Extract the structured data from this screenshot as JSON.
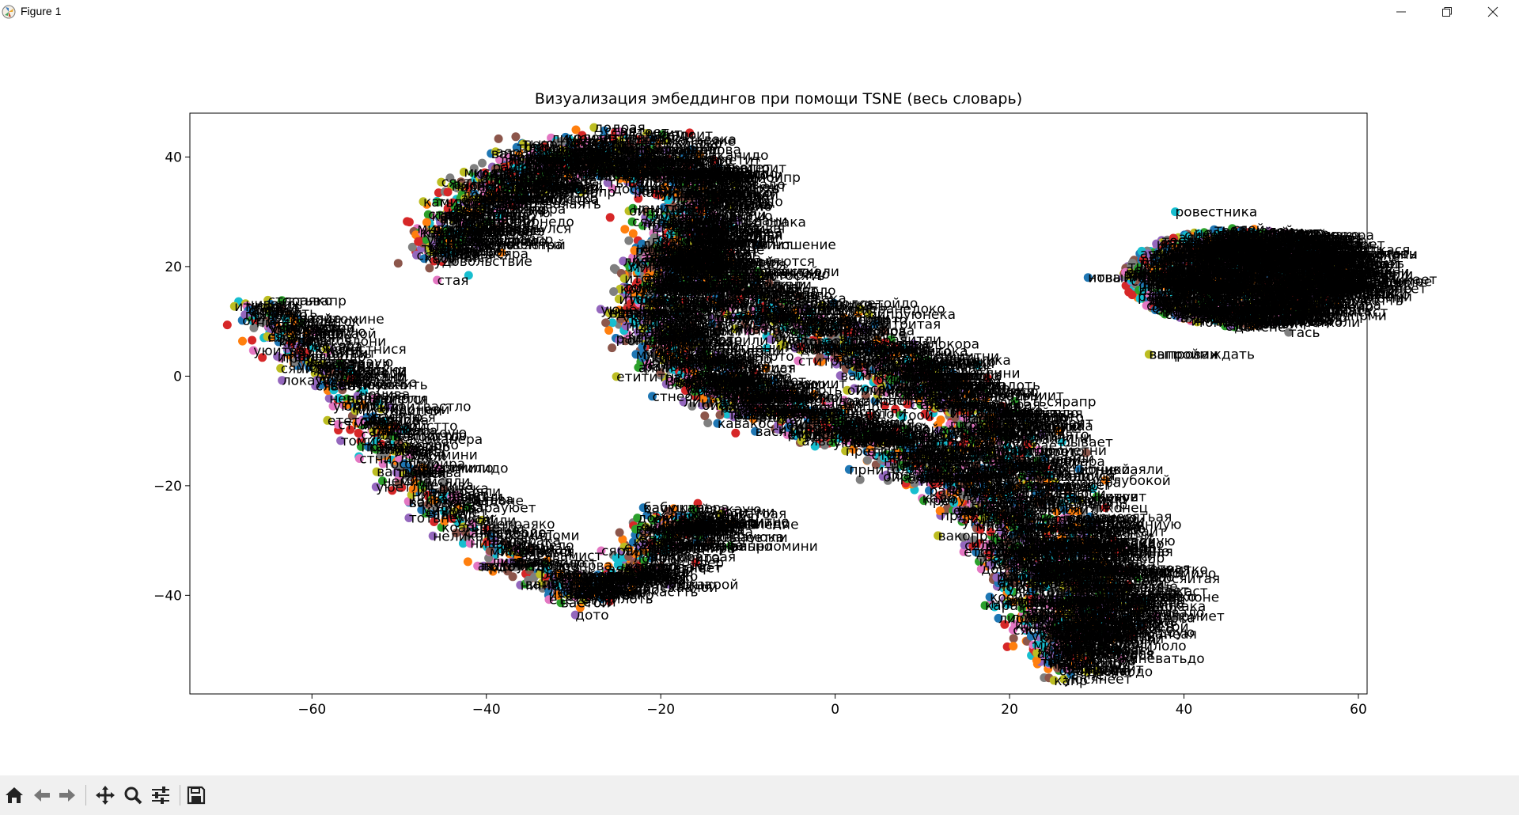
{
  "window": {
    "title": "Figure 1"
  },
  "toolbar": {
    "buttons": [
      {
        "name": "home",
        "icon": "home-icon"
      },
      {
        "name": "back",
        "icon": "back-arrow-icon"
      },
      {
        "name": "forward",
        "icon": "forward-arrow-icon"
      },
      {
        "name": "pan",
        "icon": "pan-icon"
      },
      {
        "name": "zoom",
        "icon": "zoom-icon"
      },
      {
        "name": "configure-subplots",
        "icon": "sliders-icon"
      },
      {
        "name": "save",
        "icon": "save-icon"
      }
    ]
  },
  "chart_data": {
    "type": "scatter",
    "title": "Визуализация эмбеддингов при помощи TSNE (весь словарь)",
    "xlabel": "",
    "ylabel": "",
    "xlim": [
      -74,
      61
    ],
    "ylim": [
      -58,
      48
    ],
    "xticks": [
      -60,
      -40,
      -20,
      0,
      20,
      40,
      60
    ],
    "yticks": [
      -40,
      -20,
      0,
      20,
      40
    ],
    "xtick_labels": [
      "−60",
      "−40",
      "−20",
      "0",
      "20",
      "40",
      "60"
    ],
    "ytick_labels": [
      "−40",
      "−20",
      "0",
      "20",
      "40"
    ],
    "grid": false,
    "colors": [
      "#1f77b4",
      "#ff7f0e",
      "#2ca02c",
      "#d62728",
      "#9467bd",
      "#8c564b",
      "#e377c2",
      "#7f7f7f",
      "#bcbd22",
      "#17becf"
    ],
    "clusters": [
      {
        "shape": "polyline",
        "points": [
          [
            -67,
            12
          ],
          [
            -62,
            6
          ],
          [
            -57,
            -2
          ],
          [
            -52,
            -12
          ],
          [
            -47,
            -22
          ],
          [
            -41,
            -31
          ],
          [
            -35,
            -36
          ],
          [
            -30,
            -39
          ],
          [
            -25,
            -37
          ],
          [
            -22,
            -31
          ],
          [
            -19,
            -27
          ],
          [
            -14,
            -27
          ]
        ],
        "spread": 3.5,
        "count": 650
      },
      {
        "shape": "polyline",
        "points": [
          [
            -46,
            22
          ],
          [
            -44,
            30
          ],
          [
            -38,
            36
          ],
          [
            -30,
            40
          ],
          [
            -22,
            40
          ],
          [
            -16,
            34
          ],
          [
            -17,
            26
          ],
          [
            -21,
            18
          ],
          [
            -22,
            10
          ],
          [
            -19,
            3
          ],
          [
            -13,
            -3
          ],
          [
            -5,
            -7
          ],
          [
            4,
            -12
          ],
          [
            12,
            -18
          ],
          [
            17,
            -26
          ],
          [
            21,
            -36
          ],
          [
            24,
            -46
          ],
          [
            27,
            -53
          ]
        ],
        "spread": 5,
        "count": 1900
      },
      {
        "shape": "polyline",
        "points": [
          [
            -22,
            26
          ],
          [
            -12,
            14
          ],
          [
            0,
            6
          ],
          [
            10,
            -2
          ],
          [
            18,
            -12
          ],
          [
            24,
            -24
          ],
          [
            28,
            -36
          ],
          [
            30,
            -47
          ]
        ],
        "spread": 6,
        "count": 1100
      },
      {
        "shape": "ellipse",
        "center": [
          46,
          18
        ],
        "rx": 13,
        "ry": 9,
        "count": 1100
      }
    ],
    "labeled_points": [
      {
        "x": -67,
        "y": 12,
        "label": "Тогда"
      },
      {
        "x": -62,
        "y": 10,
        "label": "таблеток"
      },
      {
        "x": -63,
        "y": 9,
        "label": "ружьев"
      },
      {
        "x": -46,
        "y": 21,
        "label": "удовольствие"
      },
      {
        "x": -41,
        "y": 24,
        "label": "мертвенный"
      },
      {
        "x": -39,
        "y": 27,
        "label": "улыбнулся"
      },
      {
        "x": -38,
        "y": 31,
        "label": "улица"
      },
      {
        "x": -34,
        "y": 35,
        "label": "длинная"
      },
      {
        "x": -12,
        "y": 31,
        "label": "ровно"
      },
      {
        "x": -14,
        "y": 27,
        "label": "бросаться"
      },
      {
        "x": -9,
        "y": 24,
        "label": "отношение"
      },
      {
        "x": -12,
        "y": 21,
        "label": "появляются"
      },
      {
        "x": -14,
        "y": 17,
        "label": "стоя"
      },
      {
        "x": -8,
        "y": 12,
        "label": "концу"
      },
      {
        "x": 5,
        "y": 5,
        "label": "денной"
      },
      {
        "x": 8,
        "y": 0,
        "label": "всякими"
      },
      {
        "x": 11,
        "y": -1,
        "label": "лучше"
      },
      {
        "x": 18,
        "y": -6,
        "label": "писы"
      },
      {
        "x": 22,
        "y": -9,
        "label": "техника"
      },
      {
        "x": 26,
        "y": -12,
        "label": "бывает"
      },
      {
        "x": 28,
        "y": -17,
        "label": "ночной"
      },
      {
        "x": 31,
        "y": -19,
        "label": "глубокой"
      },
      {
        "x": 30,
        "y": -22,
        "label": "кинув"
      },
      {
        "x": 31,
        "y": -24,
        "label": "конец"
      },
      {
        "x": 30,
        "y": -27,
        "label": "пил"
      },
      {
        "x": 33,
        "y": -32,
        "label": "ванная"
      },
      {
        "x": 34,
        "y": -36,
        "label": "йная"
      },
      {
        "x": 33,
        "y": -40,
        "label": "твенное"
      },
      {
        "x": 33,
        "y": -42,
        "label": "ивая"
      },
      {
        "x": 32,
        "y": -50,
        "label": "алась"
      },
      {
        "x": -22,
        "y": -24,
        "label": "бабушка"
      },
      {
        "x": -12,
        "y": -27,
        "label": "давление"
      },
      {
        "x": -12,
        "y": -31,
        "label": "ально"
      },
      {
        "x": -16,
        "y": -34,
        "label": "фер"
      },
      {
        "x": -19,
        "y": -38,
        "label": "улица"
      },
      {
        "x": -48,
        "y": -17,
        "label": "шь"
      },
      {
        "x": -44,
        "y": -22,
        "label": "ным"
      },
      {
        "x": -39,
        "y": -28,
        "label": "ако"
      },
      {
        "x": -53,
        "y": -10,
        "label": "шь"
      },
      {
        "x": 44,
        "y": 26,
        "label": "повод"
      },
      {
        "x": 52,
        "y": 24,
        "label": "иться"
      },
      {
        "x": 54,
        "y": 22,
        "label": "аются"
      },
      {
        "x": 55,
        "y": 21,
        "label": "вой"
      },
      {
        "x": 55,
        "y": 19,
        "label": "ваются"
      },
      {
        "x": 54,
        "y": 17,
        "label": "ется"
      },
      {
        "x": 54,
        "y": 14,
        "label": "ся"
      },
      {
        "x": 52,
        "y": 11,
        "label": "ало"
      },
      {
        "x": 52,
        "y": 8,
        "label": "тась"
      },
      {
        "x": 36,
        "y": 4,
        "label": "выпроваждать"
      },
      {
        "x": 39,
        "y": 30,
        "label": "ровестника"
      },
      {
        "x": 29,
        "y": 18,
        "label": "новый"
      }
    ]
  }
}
